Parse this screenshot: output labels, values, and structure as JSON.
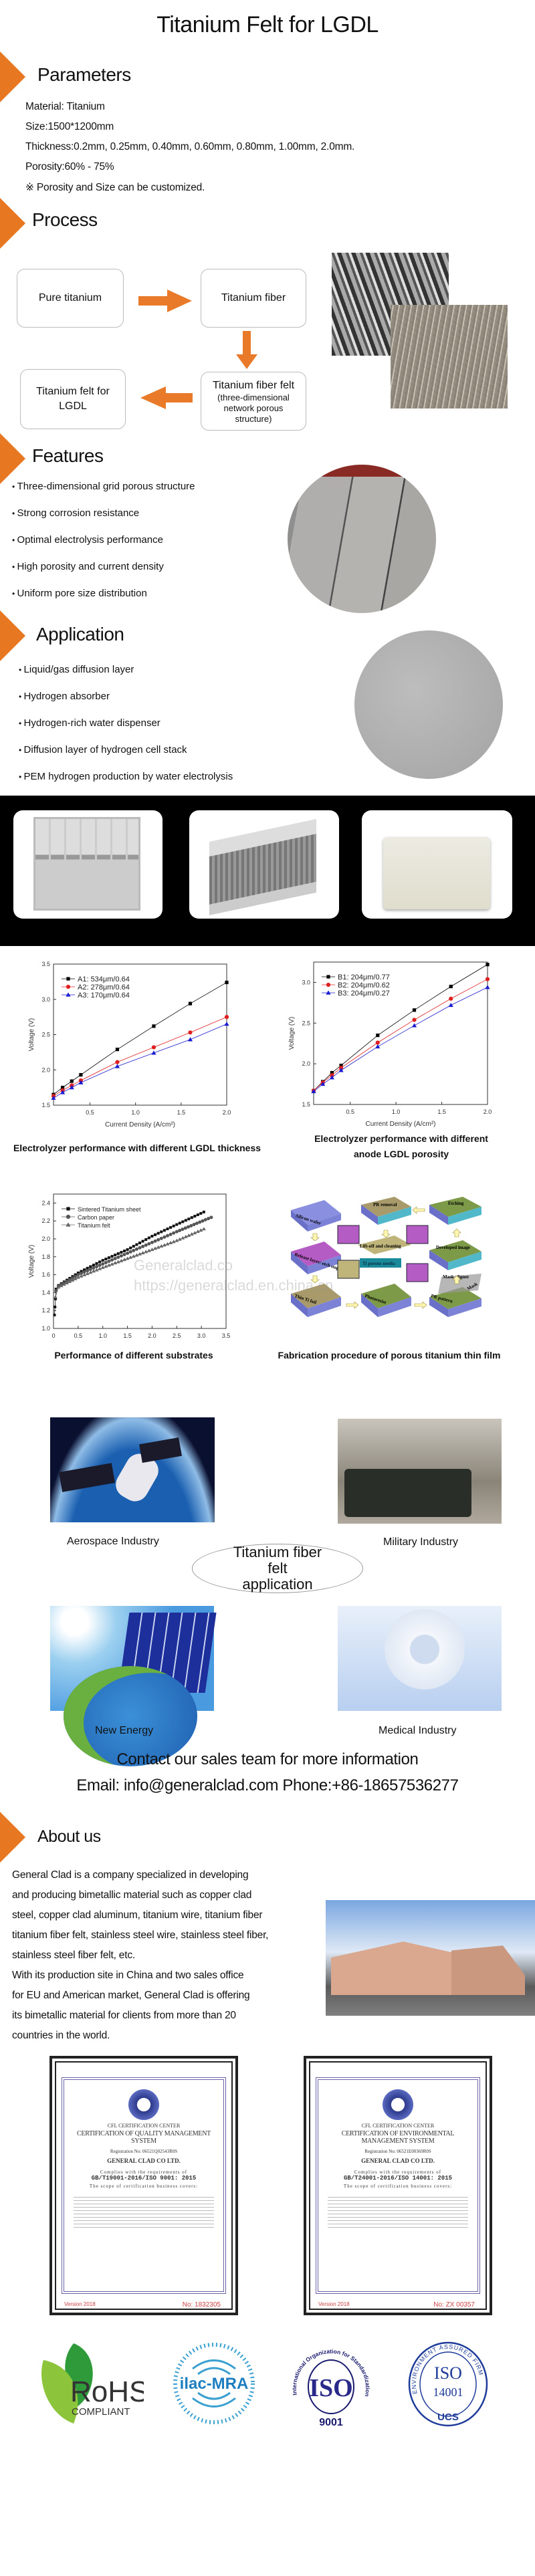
{
  "page_title": "Titanium Felt for LGDL",
  "brand_color": "#e87722",
  "parameters": {
    "heading": "Parameters",
    "lines": [
      "Material: Titanium",
      "Size:1500*1200mm",
      "Thickness:0.2mm, 0.25mm, 0.40mm, 0.60mm, 0.80mm, 1.00mm, 2.0mm.",
      "Porosity:60% - 75%",
      "※ Porosity and Size can be customized."
    ]
  },
  "process": {
    "heading": "Process",
    "steps": {
      "pure": "Pure titanium",
      "fiber": "Titanium fiber",
      "felt": "Titanium fiber felt",
      "felt_note": "(three-dimensional network porous structure)",
      "lgdl": "Titanium felt for LGDL"
    }
  },
  "features": {
    "heading": "Features",
    "items": [
      "Three-dimensional grid porous structure",
      "Strong corrosion resistance",
      "Optimal electrolysis performance",
      "High porosity and current density",
      "Uniform pore size distribution"
    ]
  },
  "application": {
    "heading": "Application",
    "items": [
      "Liquid/gas diffusion layer",
      "Hydrogen absorber",
      "Hydrogen-rich water dispenser",
      "Diffusion layer of hydrogen cell stack",
      "PEM hydrogen production by water electrolysis"
    ]
  },
  "chart_data": [
    {
      "type": "line",
      "title": "Electrolyzer performance with different LGDL thickness",
      "xlabel": "Current Density (A/cm²)",
      "ylabel": "Voltage (V)",
      "xlim": [
        0.1,
        2.0
      ],
      "ylim": [
        1.5,
        3.5
      ],
      "xticks": [
        "0.5",
        "1.0",
        "1.5",
        "2.0"
      ],
      "yticks": [
        "1.5",
        "2.0",
        "2.5",
        "3.0",
        "3.5"
      ],
      "legend": "top-left",
      "x": [
        0.1,
        0.2,
        0.3,
        0.4,
        0.8,
        1.2,
        1.6,
        2.0
      ],
      "series": [
        {
          "name": "A1: 534μm/0.64",
          "color": "#000000",
          "marker": "square",
          "values": [
            1.65,
            1.75,
            1.84,
            1.93,
            2.29,
            2.62,
            2.94,
            3.24
          ]
        },
        {
          "name": "A2: 278μm/0.64",
          "color": "#e02020",
          "marker": "circle",
          "values": [
            1.63,
            1.71,
            1.78,
            1.85,
            2.11,
            2.32,
            2.53,
            2.75
          ]
        },
        {
          "name": "A3: 170μm/0.64",
          "color": "#1a1ad0",
          "marker": "triangle",
          "values": [
            1.6,
            1.68,
            1.75,
            1.82,
            2.05,
            2.24,
            2.43,
            2.65
          ]
        }
      ]
    },
    {
      "type": "line",
      "title": "Electrolyzer performance with different",
      "title_line2": "anode LGDL porosity",
      "xlabel": "Current Density (A/cm²)",
      "ylabel": "Voltage (V)",
      "xlim": [
        0.1,
        2.0
      ],
      "ylim": [
        1.5,
        3.25
      ],
      "xticks": [
        "0.5",
        "1.0",
        "1.5",
        "2.0"
      ],
      "yticks": [
        "1.5",
        "2.0",
        "2.5",
        "3.0"
      ],
      "legend": "top-left",
      "x": [
        0.1,
        0.2,
        0.3,
        0.4,
        0.8,
        1.2,
        1.6,
        2.0
      ],
      "series": [
        {
          "name": "B1: 204μm/0.77",
          "color": "#000000",
          "marker": "square",
          "values": [
            1.67,
            1.78,
            1.89,
            1.98,
            2.35,
            2.66,
            2.95,
            3.22
          ]
        },
        {
          "name": "B2: 204μm/0.62",
          "color": "#e02020",
          "marker": "circle",
          "values": [
            1.67,
            1.77,
            1.86,
            1.95,
            2.26,
            2.54,
            2.8,
            3.04
          ]
        },
        {
          "name": "B3: 204μm/0.27",
          "color": "#1a1ad0",
          "marker": "triangle",
          "values": [
            1.66,
            1.75,
            1.83,
            1.92,
            2.21,
            2.47,
            2.72,
            2.94
          ]
        }
      ]
    },
    {
      "type": "line",
      "title": "Performance of different substrates",
      "xlabel": "",
      "ylabel": "Voltage (V)",
      "xlim": [
        0,
        3.5
      ],
      "ylim": [
        1.0,
        2.5
      ],
      "xticks": [
        "0",
        "0.5",
        "1.0",
        "1.5",
        "2.0",
        "2.5",
        "3.0",
        "3.5"
      ],
      "yticks": [
        "1.0",
        "1.2",
        "1.4",
        "1.6",
        "1.8",
        "2.0",
        "2.2",
        "2.4"
      ],
      "legend": "top-left",
      "series": [
        {
          "name": "Sintered Titanium sheet",
          "color": "#111111",
          "marker": "square",
          "x": [
            0.02,
            0.03,
            0.04,
            0.05,
            0.1,
            0.5,
            1.0,
            1.5,
            2.0,
            2.5,
            3.05
          ],
          "values": [
            1.15,
            1.24,
            1.33,
            1.44,
            1.48,
            1.62,
            1.76,
            1.88,
            2.03,
            2.16,
            2.3
          ]
        },
        {
          "name": "Carbon paper",
          "color": "#555555",
          "marker": "circle",
          "x": [
            0.05,
            0.1,
            0.5,
            1.0,
            1.5,
            2.0,
            2.5,
            3.2
          ],
          "values": [
            1.42,
            1.47,
            1.6,
            1.72,
            1.84,
            1.96,
            2.08,
            2.24
          ]
        },
        {
          "name": "Titanium felt",
          "color": "#666666",
          "marker": "triangle",
          "x": [
            0.04,
            0.1,
            0.5,
            1.0,
            1.5,
            2.0,
            2.5,
            3.05
          ],
          "values": [
            1.35,
            1.46,
            1.57,
            1.68,
            1.78,
            1.88,
            1.98,
            2.11
          ]
        }
      ]
    }
  ],
  "fabrication": {
    "caption": "Fabrication procedure of porous titanium thin film",
    "labels": [
      "Silicon wafer",
      "Release layer/ etch stopper",
      "Thin Ti foil",
      "Photoresist",
      "PR pattern",
      "Mask aligner",
      "Mask",
      "Developed image",
      "Etching",
      "PR removal",
      "Lift-off and cleaning",
      "Ti porous media"
    ]
  },
  "watermark": {
    "line1": "Generalclad.co",
    "line2": "https://generalclad.en.china.cn"
  },
  "industries": {
    "center": "Titanium fiber felt application",
    "items": [
      "Aerospace Industry",
      "Military Industry",
      "New Energy",
      "Medical Industry"
    ]
  },
  "contact": {
    "headline": "Contact our sales team for more information",
    "line": "Email: info@generalclad.com Phone:+86-18657536277"
  },
  "about": {
    "heading": "About us",
    "lines": [
      "General Clad is a company specialized in developing",
      "and producing bimetallic material such as copper clad",
      "steel, copper clad aluminum,  titanium wire, titanium fiber",
      "titanium fiber felt, stainless steel wire, stainless steel fiber,",
      "stainless steel fiber felt, etc.",
      "With its production site in China and two sales office",
      "for EU and American market, General Clad is offering",
      "its bimetallic material for clients from more than 20",
      "countries in the world."
    ]
  },
  "certificates": [
    {
      "center": "CFL CERTIFICATION CENTER",
      "title": "CERTIFICATION OF QUALITY MANAGEMENT SYSTEM",
      "reg": "Registration No: 06521Q02543R0S",
      "company": "GENERAL CLAD CO LTD.",
      "complies": "Complies with the requirements of",
      "standard": "GB/T19001-2016/ISO 9001: 2015",
      "scope": "The scope of certification business covers:",
      "version": "Version 2018",
      "number": "No: 1832305"
    },
    {
      "center": "CFL CERTIFICATION CENTER",
      "title": "CERTIFICATION OF ENVIRONMENTAL MANAGEMENT SYSTEM",
      "reg": "Registration No: 06521E00369R0S",
      "company": "GENERAL CLAD CO LTD.",
      "complies": "Complies with the requirements of",
      "standard": "GB/T24001-2016/ISO 14001: 2015",
      "scope": "The scope of certification business covers:",
      "version": "Version 2018",
      "number": "No: ZX 00357"
    }
  ],
  "logos": {
    "rohs": {
      "main": "RoHS",
      "sub": "COMPLIANT"
    },
    "ilac": "ilac-MRA",
    "iso9001": {
      "ring": "International Organization for Standardization",
      "main": "ISO",
      "num": "9001"
    },
    "iso14001": {
      "ring": "ENVIRONMENT ASSURED FIRM",
      "main": "ISO",
      "num": "14001",
      "sub": "UCS"
    }
  }
}
